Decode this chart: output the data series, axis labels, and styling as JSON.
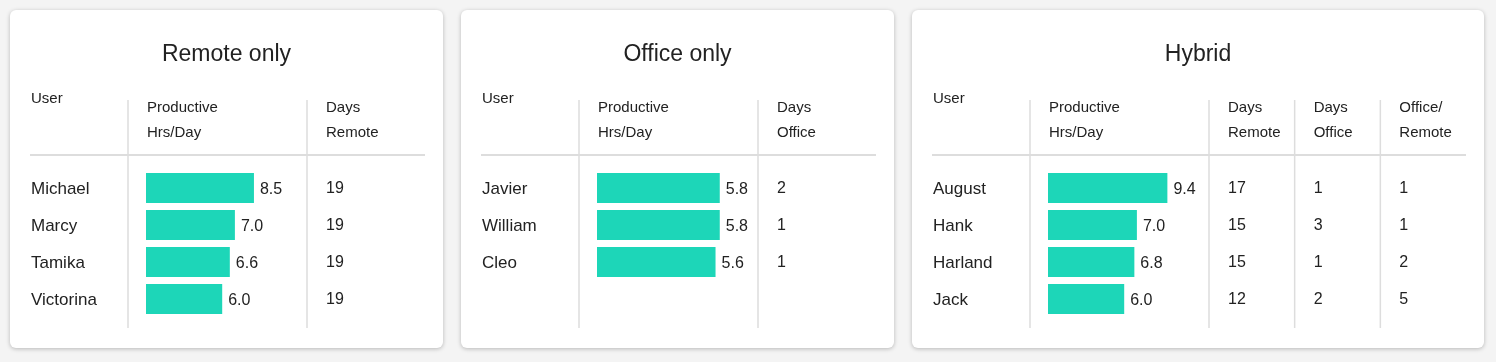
{
  "chart_data": [
    {
      "type": "bar",
      "orientation": "horizontal",
      "title": "Remote only",
      "ylabel": "User",
      "xlabel": "Productive Hrs/Day",
      "categories": [
        "Michael",
        "Marcy",
        "Tamika",
        "Victorina"
      ],
      "values": [
        8.5,
        7.0,
        6.6,
        6.0
      ],
      "value_labels": [
        "8.5",
        "7.0",
        "6.6",
        "6.0"
      ],
      "color": "#1dd6b8",
      "annotations": [
        "Days Remote",
        "19",
        "19",
        "19",
        "19"
      ]
    },
    {
      "type": "bar",
      "orientation": "horizontal",
      "title": "Office only",
      "ylabel": "User",
      "xlabel": "Productive Hrs/Day",
      "categories": [
        "Javier",
        "William",
        "Cleo"
      ],
      "values": [
        5.8,
        5.8,
        5.6
      ],
      "value_labels": [
        "5.8",
        "5.8",
        "5.6"
      ],
      "color": "#1dd6b8",
      "annotations": [
        "Days Office",
        "2",
        "1",
        "1"
      ]
    },
    {
      "type": "bar",
      "orientation": "horizontal",
      "title": "Hybrid",
      "ylabel": "User",
      "xlabel": "Productive Hrs/Day",
      "categories": [
        "August",
        "Hank",
        "Harland",
        "Jack"
      ],
      "values": [
        9.4,
        7.0,
        6.8,
        6.0
      ],
      "value_labels": [
        "9.4",
        "7.0",
        "6.8",
        "6.0"
      ],
      "color": "#1dd6b8",
      "annotations": [
        "Days Remote",
        "17",
        "15",
        "15",
        "12",
        "Days Office",
        "1",
        "3",
        "1",
        "2",
        "Office/ Remote",
        "1",
        "1",
        "2",
        "5"
      ]
    }
  ]
}
